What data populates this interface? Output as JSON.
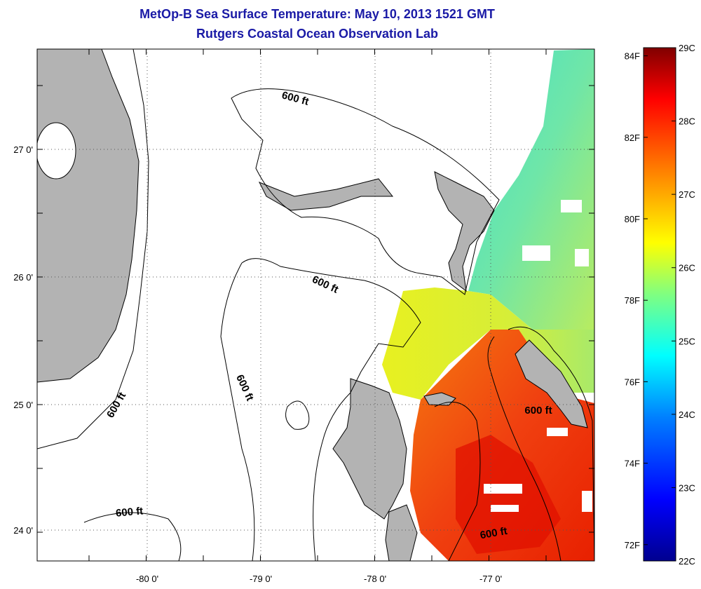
{
  "title": "MetOp-B Sea Surface Temperature:  May 10, 2013 1521 GMT",
  "subtitle": "Rutgers Coastal Ocean Observation Lab",
  "map": {
    "x_ticks": [
      "-80 0'",
      "-79 0'",
      "-78 0'",
      "-77 0'"
    ],
    "y_ticks": [
      "27 0'",
      "26 0'",
      "25 0'",
      "24 0'"
    ],
    "contour_labels": [
      "600 ft",
      "600 ft",
      "600 ft",
      "600 ft",
      "600 ft",
      "600 ft",
      "600 ft"
    ],
    "colors": {
      "land": "#b3b3b3",
      "frame": "#000000",
      "grid": "#555555"
    }
  },
  "colorbar": {
    "celsius": [
      "29C",
      "28C",
      "27C",
      "26C",
      "25C",
      "24C",
      "23C",
      "22C"
    ],
    "fahrenheit": [
      "84F",
      "82F",
      "80F",
      "78F",
      "76F",
      "74F",
      "72F"
    ],
    "range_c": [
      22,
      29
    ]
  }
}
